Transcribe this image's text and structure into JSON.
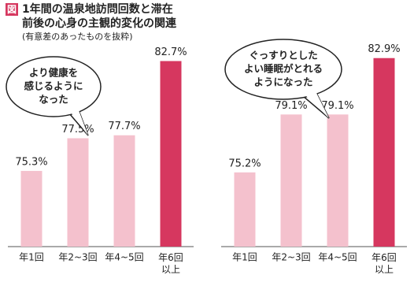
{
  "figure": {
    "badge": "図",
    "title_lines": [
      "1年間の温泉地訪問回数と滞在",
      "前後の心身の主観的変化の関連"
    ],
    "subtitle": "(有意差のあったものを抜粋)"
  },
  "chart_data": [
    {
      "type": "bar",
      "annotation": [
        "より健康を",
        "感じるように",
        "なった"
      ],
      "categories": [
        "年1回",
        "年2~3回",
        "年4~5回",
        "年6回\n以上"
      ],
      "values": [
        75.3,
        77.5,
        77.7,
        82.7
      ],
      "value_labels": [
        "75.3%",
        "77.5%",
        "77.7%",
        "82.7%"
      ],
      "colors": [
        "#f4c1cd",
        "#f4c1cd",
        "#f4c1cd",
        "#d6375f"
      ],
      "ylim": [
        70.2,
        84
      ]
    },
    {
      "type": "bar",
      "annotation": [
        "ぐっすりとした",
        "よい睡眠がとれる",
        "ようになった"
      ],
      "categories": [
        "年1回",
        "年2~3回",
        "年4~5回",
        "年6回\n以上"
      ],
      "values": [
        75.2,
        79.1,
        79.1,
        82.9
      ],
      "value_labels": [
        "75.2%",
        "79.1%",
        "79.1%",
        "82.9%"
      ],
      "colors": [
        "#f4c1cd",
        "#f4c1cd",
        "#f4c1cd",
        "#d6375f"
      ],
      "ylim": [
        70.2,
        84
      ]
    }
  ]
}
